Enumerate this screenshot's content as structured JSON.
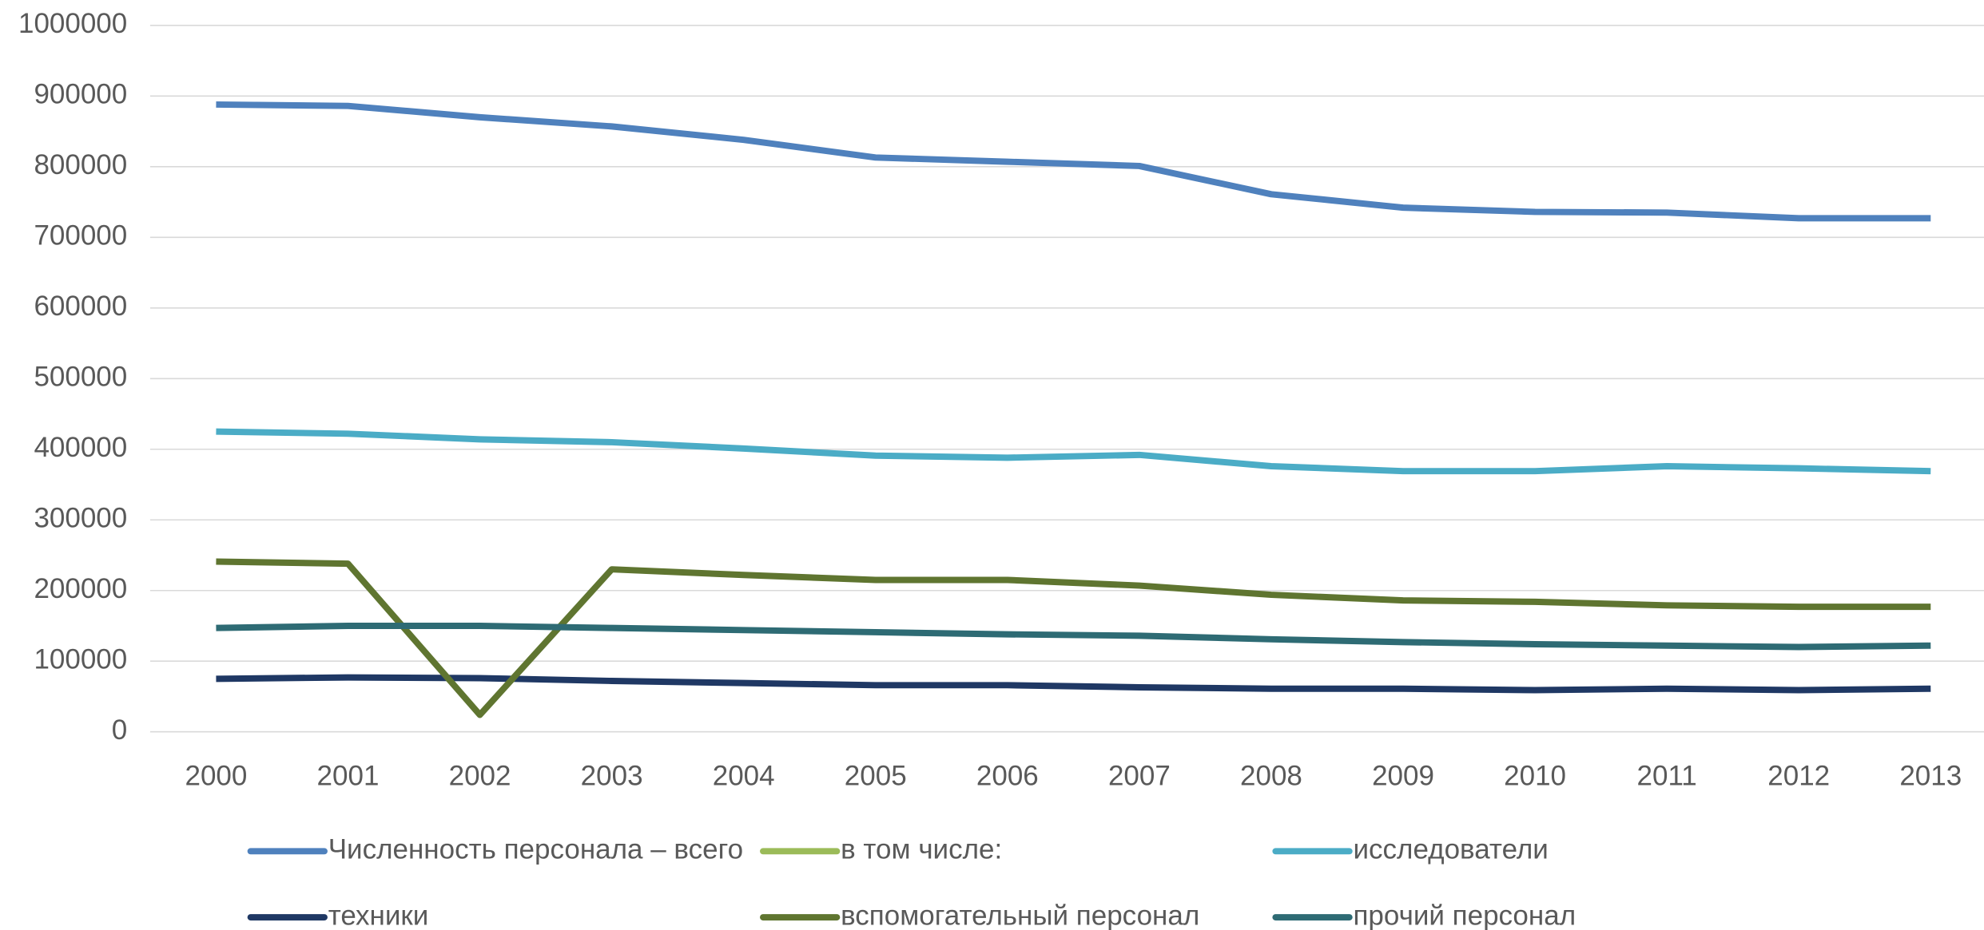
{
  "chart_data": {
    "type": "line",
    "categories": [
      "2000",
      "2001",
      "2002",
      "2003",
      "2004",
      "2005",
      "2006",
      "2007",
      "2008",
      "2009",
      "2010",
      "2011",
      "2012",
      "2013"
    ],
    "series": [
      {
        "name": "Численность персонала – всего",
        "color": "#4f81bd",
        "values": [
          888000,
          886000,
          870000,
          857000,
          838000,
          813000,
          807000,
          801000,
          761000,
          742000,
          736000,
          735000,
          727000,
          727000
        ]
      },
      {
        "name": "в том числе:",
        "color": "#9bbb59",
        "values": [
          null,
          null,
          null,
          null,
          null,
          null,
          null,
          null,
          null,
          null,
          null,
          null,
          null,
          null
        ]
      },
      {
        "name": "исследователи",
        "color": "#4bacc6",
        "values": [
          425000,
          422000,
          414000,
          410000,
          401000,
          391000,
          388000,
          392000,
          376000,
          369000,
          369000,
          376000,
          373000,
          369000
        ]
      },
      {
        "name": "техники",
        "color": "#1f3864",
        "values": [
          75000,
          77000,
          76000,
          72000,
          69000,
          66000,
          66000,
          63000,
          61000,
          61000,
          59000,
          61000,
          59000,
          61000
        ]
      },
      {
        "name": "вспомогательный персонал",
        "color": "#5f7530",
        "values": [
          241000,
          238000,
          24000,
          230000,
          222000,
          215000,
          215000,
          207000,
          194000,
          186000,
          184000,
          179000,
          177000,
          177000
        ]
      },
      {
        "name": "прочий персонал",
        "color": "#2e6b74",
        "values": [
          147000,
          150000,
          150000,
          147000,
          144000,
          141000,
          138000,
          136000,
          131000,
          127000,
          124000,
          122000,
          120000,
          122000
        ]
      }
    ],
    "ylim": [
      0,
      1000000
    ],
    "yticks": [
      0,
      100000,
      200000,
      300000,
      400000,
      500000,
      600000,
      700000,
      800000,
      900000,
      1000000
    ],
    "grid": true
  }
}
